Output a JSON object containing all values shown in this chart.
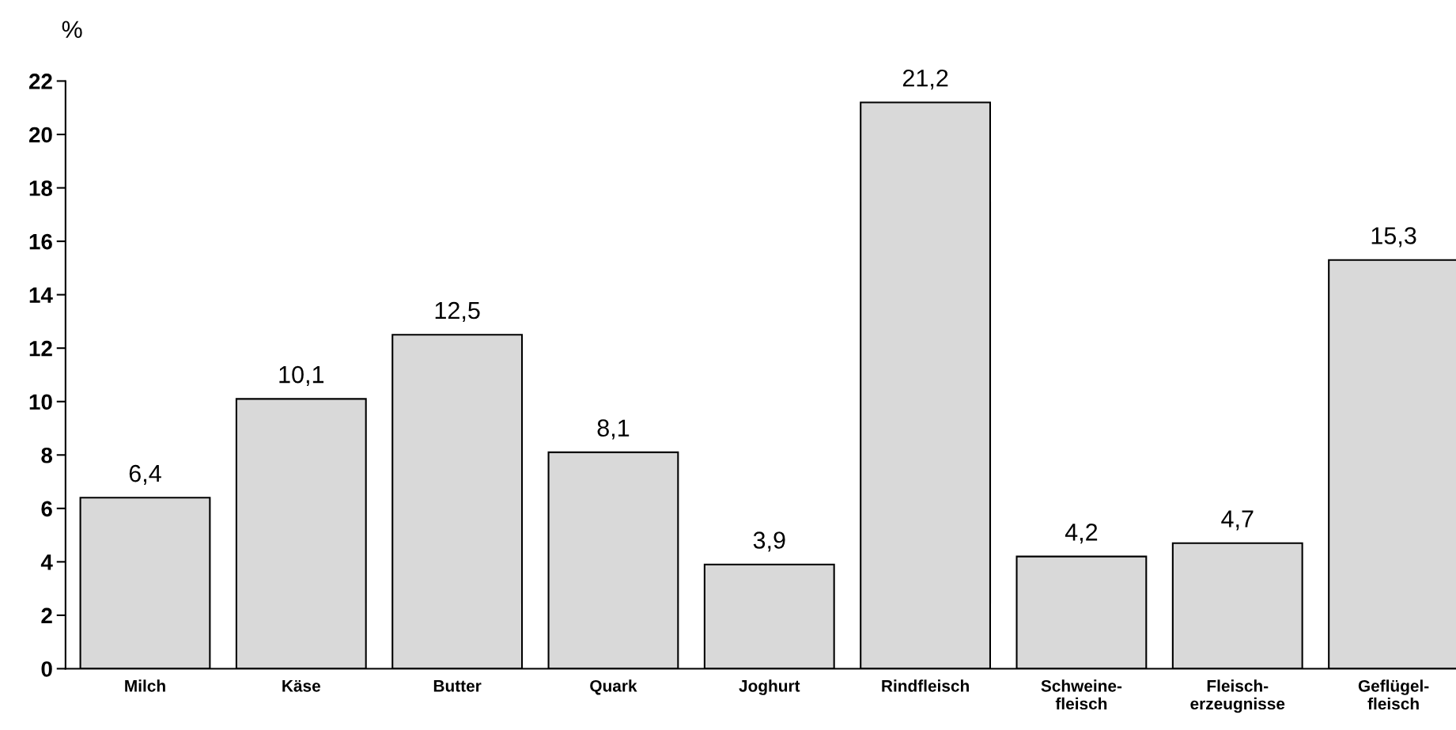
{
  "chart_data": {
    "type": "bar",
    "ylabel": "%",
    "categories": [
      "Milch",
      "Käse",
      "Butter",
      "Quark",
      "Joghurt",
      "Rindfleisch",
      "Schweine-\nfleisch",
      "Fleisch-\nerzeugnisse",
      "Geflügel-\nfleisch"
    ],
    "values": [
      6.4,
      10.1,
      12.5,
      8.1,
      3.9,
      21.2,
      4.2,
      4.7,
      15.3
    ],
    "value_labels": [
      "6,4",
      "10,1",
      "12,5",
      "8,1",
      "3,9",
      "21,2",
      "4,2",
      "4,7",
      "15,3"
    ],
    "color": "#d9d9d9",
    "ylim": [
      0,
      22
    ],
    "yticks": [
      0,
      2,
      4,
      6,
      8,
      10,
      12,
      14,
      16,
      18,
      20,
      22
    ],
    "grid": false,
    "legend": false
  }
}
